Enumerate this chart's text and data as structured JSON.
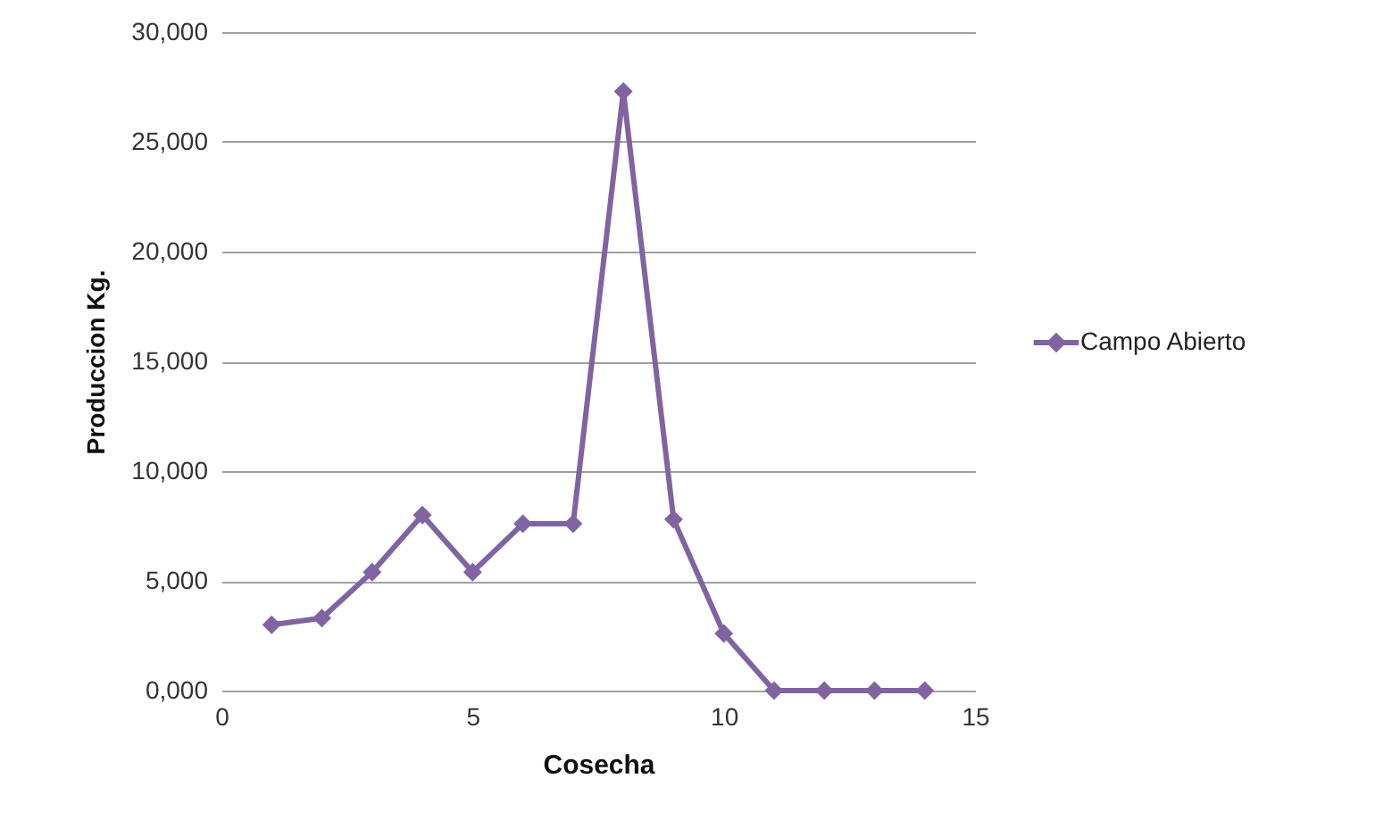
{
  "chart_data": {
    "type": "line",
    "xlabel": "Cosecha",
    "ylabel": "Produccion Kg.",
    "x": [
      1,
      2,
      3,
      4,
      5,
      6,
      7,
      8,
      9,
      10,
      11,
      12,
      13,
      14
    ],
    "series": [
      {
        "name": "Campo Abierto",
        "color": "#8064a2",
        "values": [
          3000,
          3300,
          5400,
          8000,
          5400,
          7600,
          7600,
          27300,
          7800,
          2600,
          0,
          0,
          0,
          0
        ]
      }
    ],
    "xlim": [
      0,
      15
    ],
    "xticks": [
      0,
      5,
      10,
      15
    ],
    "ylim": [
      0,
      30000
    ],
    "yticks": [
      {
        "value": 0,
        "label": "0,000"
      },
      {
        "value": 5000,
        "label": "5,000"
      },
      {
        "value": 10000,
        "label": "10,000"
      },
      {
        "value": 15000,
        "label": "15,000"
      },
      {
        "value": 20000,
        "label": "20,000"
      },
      {
        "value": 25000,
        "label": "25,000"
      },
      {
        "value": 30000,
        "label": "30,000"
      }
    ],
    "grid": "y",
    "legend": "right",
    "marker": "diamond",
    "line_style": "solid"
  }
}
